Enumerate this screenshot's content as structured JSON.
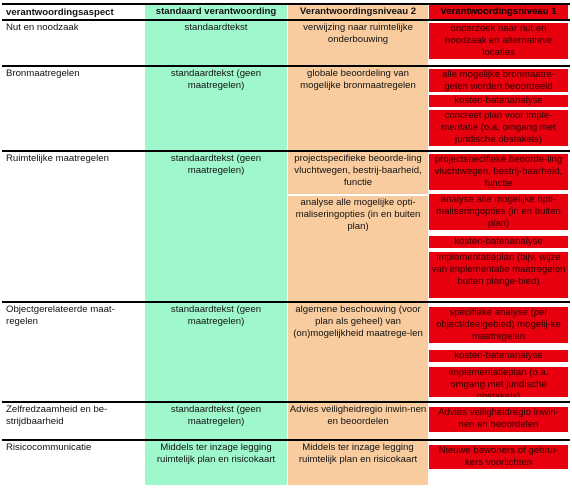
{
  "header": {
    "col1": "verantwoordingsaspect",
    "col2": "standaard verantwoording",
    "col3": "Verantwoordingsniveau 2",
    "col4": "Verantwoordingsniveau 1"
  },
  "rows": [
    {
      "aspect": "Nut en noodzaak",
      "standaard": "standaardtekst",
      "niveau2": [
        "verwijzing naar ruimtelijke onderbouwing"
      ],
      "niveau1": [
        "onderzoek naar nut en noodzaak en alternatieve locaties"
      ]
    },
    {
      "aspect": "Bronmaatregelen",
      "standaard": "standaardtekst (geen maatregelen)",
      "niveau2": [
        "globale beoordeling van mogelijke bronmaatregelen"
      ],
      "niveau1": [
        "alle mogelijke bronmaatre-gelen worden beoordeeld",
        "kosten-batenanalyse",
        "concreet plan voor imple-mentatie (o.a. omgang met juridische obstakels)"
      ]
    },
    {
      "aspect": "Ruimtelijke maatregelen",
      "standaard": "standaardtekst (geen maatregelen)",
      "niveau2": [
        "projectspecifieke beoorde-ling vluchtwegen, bestrij-baarheid, functie",
        "analyse alle mogelijke opti-maliseringopties (in en buiten plan)"
      ],
      "niveau1": [
        "projectspecifieke beoorde-ling vluchtwegen, bestrij-baarheid, functie",
        "analyse alle mogelijke opti-maliseringopties (in en buiten plan)",
        "kosten-batenanalyse",
        "implementatieplan (bijv. wijze van implementatie maatregelen buiten plange-bied)"
      ]
    },
    {
      "aspect": "Objectgerelateerde maat-regelen",
      "standaard": "standaardtekst (geen maatregelen)",
      "niveau2": [
        "algemene beschouwing (voor plan als geheel) van (on)mogelijkheid maatrege-len"
      ],
      "niveau1": [
        "specifieke analyse (per object/deelgebied) mogelij-ke maatregelen",
        "kosten-batenanalyse",
        "implementatieplan (o.a. omgang met juridische obstakels)"
      ]
    },
    {
      "aspect": "Zelfredzaamheid en be-strijdbaarheid",
      "standaard": "standaardtekst (geen maatregelen)",
      "niveau2": [
        "Advies veiligheidregio inwin-nen en beoordelen"
      ],
      "niveau1": [
        "Advies veiligheidregio inwin-nen en beoordelen"
      ]
    },
    {
      "aspect": "Risicocommunicatie",
      "standaard": "Middels ter inzage legging ruimtelijk plan en risicokaart",
      "niveau2": [
        "Middels ter inzage legging ruimtelijk plan en risicokaart"
      ],
      "niveau1": [
        "Nieuwe bewoners of gebrui-kers voorlichten"
      ]
    }
  ]
}
